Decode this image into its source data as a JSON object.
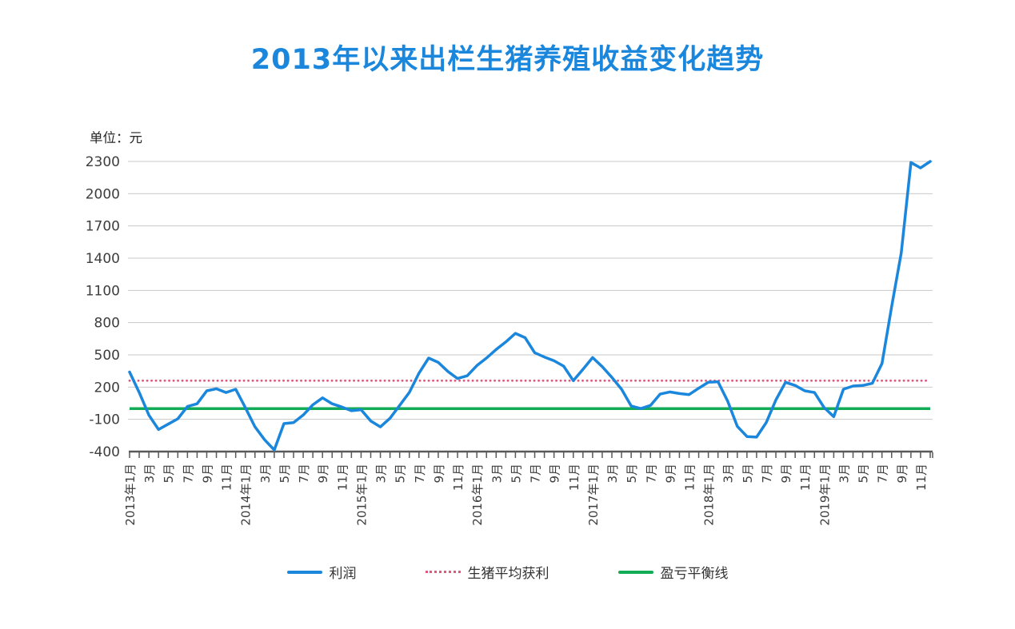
{
  "title": "2013年以来出栏生猪养殖收益变化趋势",
  "unit_label": "单位：元",
  "colors": {
    "accent_blue": "#1b87dc",
    "pink": "#e05880",
    "green": "#12ab56",
    "grid": "#c9c9c9",
    "axis": "#595959",
    "text": "#3d3d3d"
  },
  "legend": [
    {
      "label": "利润",
      "style": "solid",
      "color": "#1b87dc"
    },
    {
      "label": "生猪平均获利",
      "style": "dotted",
      "color": "#e05880"
    },
    {
      "label": "盈亏平衡线",
      "style": "solid",
      "color": "#12ab56"
    }
  ],
  "chart_data": {
    "type": "line",
    "title": "2013年以来出栏生猪养殖收益变化趋势",
    "ylabel": "单位：元",
    "ylim": [
      -400,
      2300
    ],
    "y_ticks": [
      2300,
      2000,
      1700,
      1400,
      1100,
      800,
      500,
      200,
      -100,
      -400
    ],
    "x_range": [
      "2013年1月",
      "2019年12月"
    ],
    "x_tick_labels": [
      "2013年1月",
      "3月",
      "5月",
      "7月",
      "9月",
      "11月",
      "2014年1月",
      "3月",
      "5月",
      "7月",
      "9月",
      "11月",
      "2015年1月",
      "3月",
      "5月",
      "7月",
      "9月",
      "11月",
      "2016年1月",
      "3月",
      "5月",
      "7月",
      "9月",
      "11月",
      "2017年1月",
      "3月",
      "5月",
      "7月",
      "9月",
      "11月",
      "2018年1月",
      "3月",
      "5月",
      "7月",
      "9月",
      "11月",
      "2019年1月",
      "3月",
      "5月",
      "7月",
      "9月",
      "11月"
    ],
    "grid": true,
    "legend_position": "bottom",
    "series": [
      {
        "name": "利润",
        "color": "#1b87dc",
        "style": "solid",
        "values": [
          340,
          150,
          -60,
          -195,
          -145,
          -95,
          20,
          45,
          165,
          185,
          150,
          180,
          10,
          -170,
          -290,
          -385,
          -140,
          -130,
          -60,
          35,
          100,
          45,
          15,
          -20,
          -10,
          -115,
          -170,
          -90,
          30,
          150,
          330,
          470,
          430,
          345,
          280,
          305,
          400,
          470,
          550,
          620,
          700,
          660,
          520,
          480,
          445,
          395,
          260,
          365,
          475,
          390,
          290,
          180,
          25,
          0,
          30,
          135,
          155,
          140,
          130,
          190,
          245,
          250,
          70,
          -165,
          -260,
          -265,
          -130,
          80,
          245,
          215,
          165,
          150,
          10,
          -75,
          180,
          210,
          215,
          235,
          420,
          950,
          1450,
          2290,
          2240,
          2300
        ]
      },
      {
        "name": "生猪平均获利",
        "color": "#e05880",
        "style": "dotted",
        "constant": 260
      },
      {
        "name": "盈亏平衡线",
        "color": "#12ab56",
        "style": "solid",
        "constant": 0
      }
    ]
  }
}
